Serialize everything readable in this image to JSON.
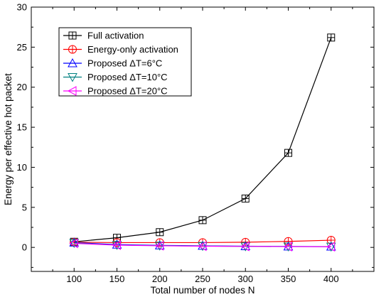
{
  "chart_data": {
    "type": "line",
    "xlabel": "Total number of nodes N",
    "ylabel": "Energy per effective hot packet",
    "x": [
      100,
      150,
      200,
      250,
      300,
      350,
      400
    ],
    "xlim": [
      50,
      450
    ],
    "ylim": [
      -3,
      30
    ],
    "xticks": [
      100,
      150,
      200,
      250,
      300,
      350,
      400
    ],
    "yticks": [
      0,
      5,
      10,
      15,
      20,
      25,
      30
    ],
    "legend_position": "top-left",
    "grid": false,
    "series": [
      {
        "name": "Full activation",
        "marker": "square-plus",
        "color": "#000000",
        "values": [
          0.7,
          1.2,
          1.9,
          3.4,
          6.1,
          11.8,
          26.2
        ]
      },
      {
        "name": "Energy-only activation",
        "marker": "circle-plus",
        "color": "#ff0000",
        "values": [
          0.65,
          0.6,
          0.6,
          0.6,
          0.65,
          0.75,
          0.9
        ]
      },
      {
        "name": "Proposed ΔT=6°C",
        "marker": "triangle-up",
        "color": "#0000ff",
        "values": [
          0.6,
          0.35,
          0.25,
          0.2,
          0.15,
          0.12,
          0.1
        ]
      },
      {
        "name": "Proposed ΔT=10°C",
        "marker": "triangle-down",
        "color": "#008080",
        "values": [
          0.55,
          0.3,
          0.22,
          0.17,
          0.13,
          0.11,
          0.09
        ]
      },
      {
        "name": "Proposed ΔT=20°C",
        "marker": "triangle-left",
        "color": "#ff00ff",
        "values": [
          0.5,
          0.28,
          0.2,
          0.15,
          0.12,
          0.1,
          0.08
        ]
      }
    ]
  }
}
